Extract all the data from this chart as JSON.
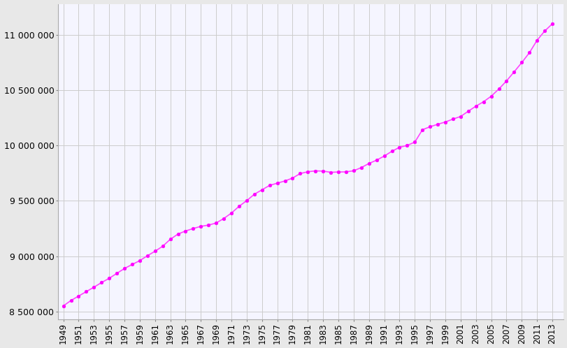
{
  "years": [
    1949,
    1950,
    1951,
    1952,
    1953,
    1954,
    1955,
    1956,
    1957,
    1958,
    1959,
    1960,
    1961,
    1962,
    1963,
    1964,
    1965,
    1966,
    1967,
    1968,
    1969,
    1970,
    1971,
    1972,
    1973,
    1974,
    1975,
    1976,
    1977,
    1978,
    1979,
    1980,
    1981,
    1982,
    1983,
    1984,
    1985,
    1986,
    1987,
    1988,
    1989,
    1990,
    1991,
    1992,
    1993,
    1994,
    1995,
    1996,
    1997,
    1998,
    1999,
    2000,
    2001,
    2002,
    2003,
    2004,
    2005,
    2006,
    2007,
    2008,
    2009,
    2010,
    2011,
    2012,
    2013
  ],
  "population": [
    8551000,
    8600000,
    8640000,
    8680000,
    8720000,
    8762000,
    8800000,
    8845000,
    8889000,
    8925000,
    8960000,
    9004000,
    9045000,
    9090000,
    9153000,
    9200000,
    9228000,
    9250000,
    9270000,
    9281000,
    9300000,
    9341000,
    9390000,
    9451000,
    9502000,
    9560000,
    9600000,
    9640000,
    9660000,
    9680000,
    9706000,
    9747000,
    9763000,
    9771000,
    9769000,
    9758000,
    9761000,
    9762000,
    9772000,
    9801000,
    9838000,
    9868000,
    9905000,
    9948000,
    9984000,
    10001000,
    10031000,
    10143000,
    10170000,
    10192000,
    10213000,
    10239000,
    10263000,
    10310000,
    10356000,
    10396000,
    10446000,
    10511000,
    10584000,
    10666000,
    10750000,
    10839000,
    10951000,
    11035000,
    11100000
  ],
  "line_color": "#ff44ff",
  "marker_color": "#ff00ff",
  "marker_size": 3.5,
  "line_width": 1.2,
  "bg_color": "#e8e8e8",
  "plot_bg_color": "#f5f5ff",
  "grid_color": "#cccccc",
  "ylim_min": 8430000,
  "ylim_max": 11280000,
  "ytick_values": [
    8500000,
    9000000,
    9500000,
    10000000,
    10500000,
    11000000
  ],
  "xtick_years": [
    1949,
    1951,
    1953,
    1955,
    1957,
    1959,
    1961,
    1963,
    1965,
    1967,
    1969,
    1971,
    1973,
    1975,
    1977,
    1979,
    1981,
    1983,
    1985,
    1987,
    1989,
    1991,
    1993,
    1995,
    1997,
    1999,
    2001,
    2003,
    2005,
    2007,
    2009,
    2011,
    2013
  ],
  "ylabel_fontsize": 9,
  "xlabel_fontsize": 8.5,
  "tick_fontsize": 9
}
